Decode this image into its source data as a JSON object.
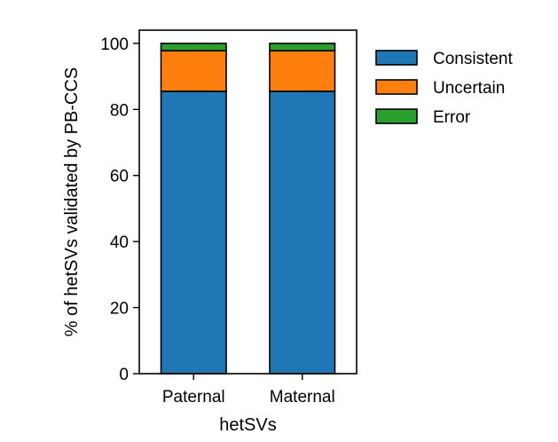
{
  "chart_data": {
    "type": "bar",
    "stacked": true,
    "categories": [
      "Paternal",
      "Maternal"
    ],
    "series": [
      {
        "name": "Consistent",
        "values": [
          85.5,
          85.5
        ],
        "color": "#1f77b4"
      },
      {
        "name": "Uncertain",
        "values": [
          12.3,
          12.3
        ],
        "color": "#ff7f0e"
      },
      {
        "name": "Error",
        "values": [
          2.2,
          2.2
        ],
        "color": "#2ca02c"
      }
    ],
    "title": "",
    "xlabel": "hetSVs",
    "ylabel": "% of hetSVs validated by PB-CCS",
    "ylim": [
      0,
      104
    ],
    "yticks": [
      0,
      20,
      40,
      60,
      80,
      100
    ],
    "ytick_labels": [
      "0",
      "20",
      "40",
      "60",
      "80",
      "100"
    ],
    "grid": false,
    "legend_position": "outside-right-top"
  }
}
